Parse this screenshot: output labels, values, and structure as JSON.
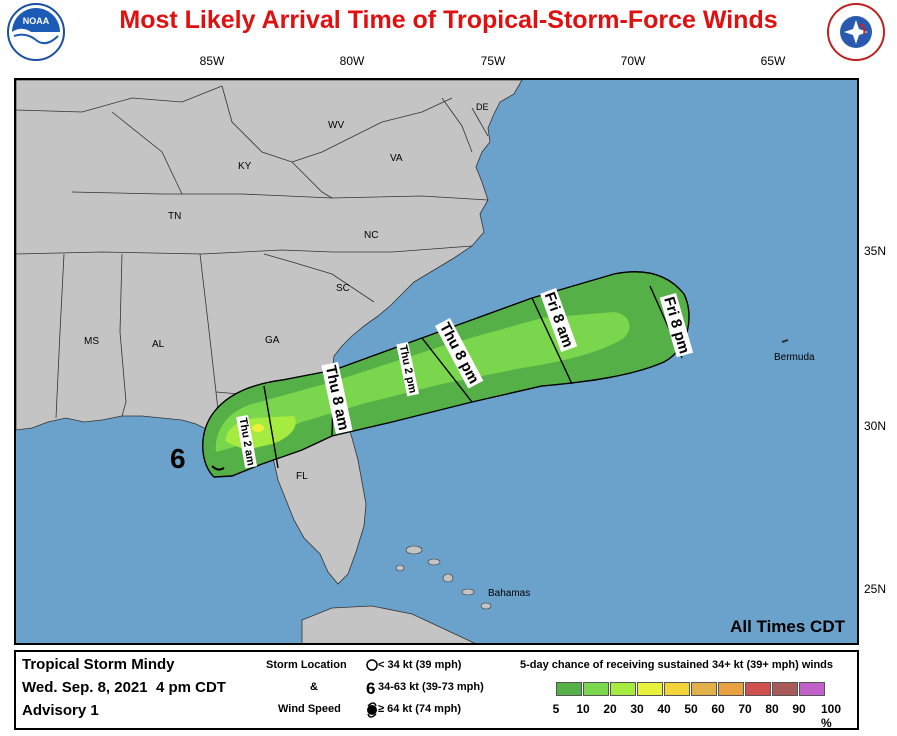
{
  "title": "Most Likely Arrival Time of Tropical-Storm-Force Winds",
  "logos": {
    "left": "NOAA",
    "right": "NATIONAL WEATHER SERVICE"
  },
  "longitudes": [
    "85W",
    "80W",
    "75W",
    "70W",
    "65W"
  ],
  "latitudes": [
    "35N",
    "30N",
    "25N"
  ],
  "states": [
    "KY",
    "WV",
    "VA",
    "TN",
    "NC",
    "SC",
    "MS",
    "AL",
    "GA",
    "FL",
    "DE"
  ],
  "places": {
    "bermuda": "Bermuda",
    "bahamas": "Bahamas"
  },
  "time_labels": [
    "Thu 8 am",
    "Thu 2 pm",
    "Thu 8 pm",
    "Fri 8 am",
    "Fri 8 pm"
  ],
  "initial_time_label": "Thu 2 am",
  "all_times": "All Times CDT",
  "storm": {
    "name": "Tropical Storm Mindy",
    "date": "Wed. Sep. 8, 2021  4 pm CDT",
    "advisory": "Advisory 1"
  },
  "legend": {
    "storm_location_label": "Storm Location",
    "amp": "&",
    "wind_speed_label": "Wind Speed",
    "entries": [
      "< 34 kt (39 mph)",
      "34-63 kt (39-73 mph)",
      "≥ 64 kt (74 mph)"
    ],
    "chance_title": "5-day chance of receiving sustained 34+ kt (39+ mph) winds",
    "percents": [
      "5",
      "10",
      "20",
      "30",
      "40",
      "50",
      "60",
      "70",
      "80",
      "90",
      "100 %"
    ],
    "colors": [
      "#55b048",
      "#7ad64c",
      "#a6ec40",
      "#e8f23c",
      "#f2d43a",
      "#e2b048",
      "#e8a040",
      "#d05050",
      "#a85a5a",
      "#c060c8"
    ]
  },
  "map_colors": {
    "ocean": "#6aa2cc",
    "land": "#c4c4c4",
    "storm_symbol": "tropical-storm-6-symbol"
  }
}
